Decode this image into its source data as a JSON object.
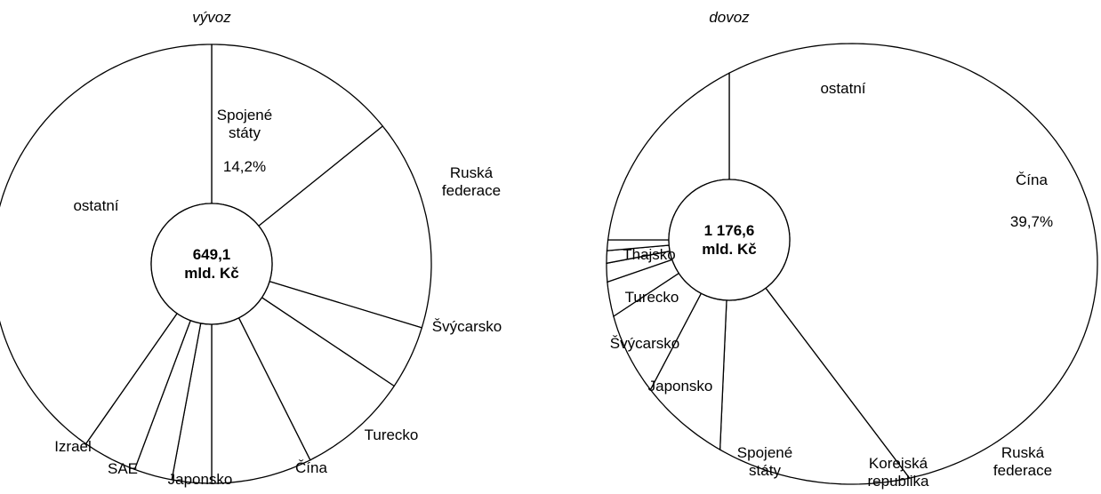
{
  "chart_data": [
    {
      "type": "pie",
      "title": "vývoz",
      "center_label": [
        "649,1",
        "mld. Kč"
      ],
      "categories": [
        "Spojené státy",
        "Ruská federace",
        "Švýcarsko",
        "Turecko",
        "Čína",
        "Japonsko",
        "SAE",
        "Izrael",
        "ostatní"
      ],
      "values": [
        14.2,
        15.5,
        4.7,
        8.2,
        7.4,
        2.9,
        2.8,
        4.0,
        40.3
      ],
      "value_labels": [
        "14,2%",
        null,
        null,
        null,
        null,
        null,
        null,
        null,
        null
      ],
      "color": "#ffffff"
    },
    {
      "type": "pie",
      "title": "dovoz",
      "center_label": [
        "1 176,6",
        "mld. Kč"
      ],
      "categories": [
        "Čína",
        "Ruská federace",
        "Korejská republika",
        "Spojené státy",
        "Japonsko",
        "Švýcarsko",
        "Turecko",
        "Thajsko",
        "ostatní"
      ],
      "values": [
        39.7,
        11.0,
        7.0,
        8.0,
        4.0,
        2.3,
        1.6,
        1.4,
        25.0
      ],
      "value_labels": [
        "39,7%",
        null,
        null,
        null,
        null,
        null,
        null,
        null,
        null
      ],
      "color": "#ffffff"
    }
  ]
}
